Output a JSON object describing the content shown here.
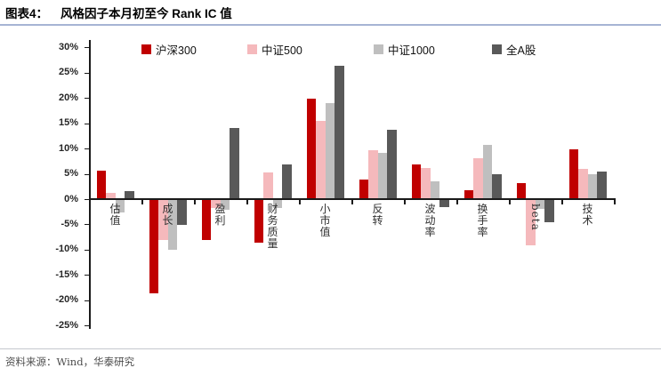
{
  "header": {
    "figure_label": "图表4：",
    "title": "风格因子本月初至今 Rank IC 值"
  },
  "footer": {
    "source": "资料来源：Wind，华泰研究"
  },
  "accent_colors": {
    "title_rule": "#a6b4d4",
    "footer_rule": "#c4c8ce"
  },
  "chart_data": {
    "type": "bar",
    "title": "风格因子本月初至今 Rank IC 值",
    "unit": "%",
    "categories": [
      "估值",
      "成长",
      "盈利",
      "财务质量",
      "小市值",
      "反转",
      "波动率",
      "换手率",
      "beta",
      "技术"
    ],
    "series": [
      {
        "name": "沪深300",
        "color": "#c00000",
        "values": [
          5.6,
          -18.4,
          -7.9,
          -8.5,
          19.9,
          3.8,
          6.9,
          1.8,
          3.1,
          9.8
        ]
      },
      {
        "name": "中证500",
        "color": "#f5b9bc",
        "values": [
          1.2,
          -7.9,
          -1.5,
          5.3,
          15.5,
          9.7,
          6.1,
          8.1,
          -8.9,
          5.9
        ]
      },
      {
        "name": "中证1000",
        "color": "#bfbfbf",
        "values": [
          -2.5,
          -9.9,
          -2.0,
          -1.6,
          18.9,
          9.1,
          3.6,
          10.8,
          -1.8,
          4.9
        ]
      },
      {
        "name": "全A股",
        "color": "#595959",
        "values": [
          1.6,
          -4.9,
          14.1,
          6.9,
          26.4,
          13.7,
          -1.4,
          4.9,
          -4.4,
          5.4
        ]
      }
    ],
    "ylim": [
      -25,
      30
    ],
    "ytick_step": 5,
    "ytick_labels": [
      "30%",
      "25%",
      "20%",
      "15%",
      "10%",
      "5%",
      "0%",
      "-5%",
      "-10%",
      "-15%",
      "-20%",
      "-25%"
    ],
    "grid": false,
    "legend_position": "top-inside"
  }
}
